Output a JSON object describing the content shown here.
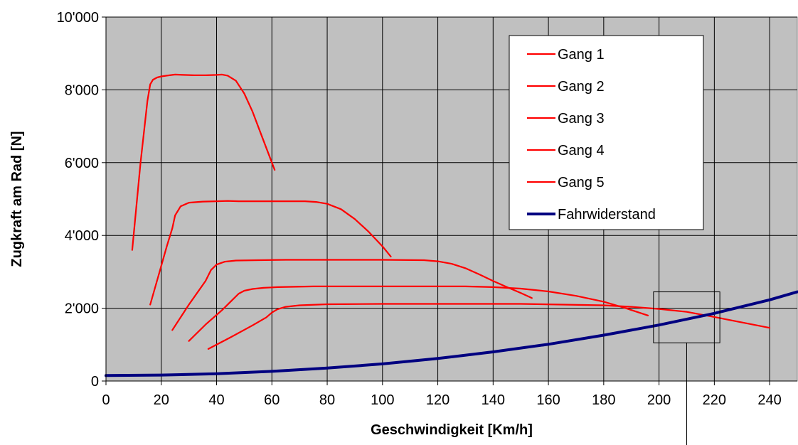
{
  "chart_data": {
    "type": "line",
    "xlabel": "Geschwindigkeit [Km/h]",
    "ylabel": "Zugkraft am Rad [N]",
    "xlim": [
      0,
      250
    ],
    "ylim": [
      0,
      10000
    ],
    "x_ticks": [
      0,
      20,
      40,
      60,
      80,
      100,
      120,
      140,
      160,
      180,
      200,
      220,
      240
    ],
    "y_ticks": [
      0,
      2000,
      4000,
      6000,
      8000,
      10000
    ],
    "x_tick_labels": [
      "0",
      "20",
      "40",
      "60",
      "80",
      "100",
      "120",
      "140",
      "160",
      "180",
      "200",
      "220",
      "240"
    ],
    "y_tick_labels": [
      "0",
      "2'000",
      "4'000",
      "6'000",
      "8'000",
      "10'000"
    ],
    "grid": true,
    "background": "#c0c0c0",
    "legend_position": "top-right",
    "series": [
      {
        "name": "Gang 1",
        "color": "#ff0000",
        "x": [
          9.5,
          12.5,
          15,
          16,
          17,
          18.5,
          20,
          22,
          25,
          28,
          32,
          36,
          40,
          42,
          44,
          47,
          50,
          53,
          56,
          58,
          60,
          61
        ],
        "y": [
          3600,
          6000,
          7700,
          8150,
          8280,
          8340,
          8370,
          8390,
          8420,
          8410,
          8400,
          8400,
          8410,
          8420,
          8390,
          8250,
          7900,
          7400,
          6800,
          6400,
          6000,
          5800
        ]
      },
      {
        "name": "Gang 2",
        "color": "#ff0000",
        "x": [
          16,
          19,
          22,
          24,
          25,
          27,
          30,
          35,
          40,
          44,
          48,
          55,
          65,
          72,
          76,
          80,
          85,
          90,
          95,
          100,
          103
        ],
        "y": [
          2100,
          2900,
          3700,
          4200,
          4550,
          4800,
          4900,
          4930,
          4940,
          4950,
          4940,
          4940,
          4940,
          4940,
          4920,
          4870,
          4720,
          4450,
          4100,
          3700,
          3420
        ]
      },
      {
        "name": "Gang 3",
        "color": "#ff0000",
        "x": [
          24,
          30,
          36,
          38,
          40,
          43,
          47,
          55,
          65,
          80,
          100,
          115,
          120,
          125,
          130,
          135,
          140,
          145,
          150,
          154
        ],
        "y": [
          1400,
          2100,
          2750,
          3050,
          3200,
          3280,
          3310,
          3320,
          3330,
          3330,
          3330,
          3320,
          3290,
          3220,
          3100,
          2930,
          2750,
          2580,
          2420,
          2280
        ]
      },
      {
        "name": "Gang 4",
        "color": "#ff0000",
        "x": [
          30,
          36,
          42,
          46,
          48,
          50,
          53,
          57,
          62,
          75,
          100,
          130,
          140,
          150,
          160,
          170,
          180,
          188,
          196
        ],
        "y": [
          1100,
          1550,
          1950,
          2250,
          2400,
          2480,
          2530,
          2560,
          2580,
          2600,
          2600,
          2600,
          2580,
          2540,
          2460,
          2340,
          2180,
          2000,
          1800
        ]
      },
      {
        "name": "Gang 5",
        "color": "#ff0000",
        "x": [
          37,
          45,
          53,
          58,
          60,
          62,
          65,
          70,
          80,
          100,
          150,
          180,
          190,
          200,
          210,
          220,
          230,
          240
        ],
        "y": [
          880,
          1200,
          1530,
          1750,
          1880,
          1970,
          2040,
          2080,
          2110,
          2120,
          2120,
          2080,
          2040,
          1980,
          1900,
          1760,
          1610,
          1460
        ]
      },
      {
        "name": "Fahrwiderstand",
        "color": "#000080",
        "x": [
          0,
          20,
          40,
          60,
          80,
          100,
          120,
          140,
          160,
          180,
          200,
          220,
          240,
          250
        ],
        "y": [
          150,
          165,
          200,
          265,
          355,
          470,
          620,
          800,
          1010,
          1260,
          1540,
          1860,
          2230,
          2450
        ]
      }
    ],
    "annotations": [
      {
        "type": "box",
        "x": [
          198,
          222
        ],
        "y": [
          1050,
          2450
        ]
      },
      {
        "type": "leader-line",
        "x": 210,
        "from_y": 1050
      }
    ]
  }
}
